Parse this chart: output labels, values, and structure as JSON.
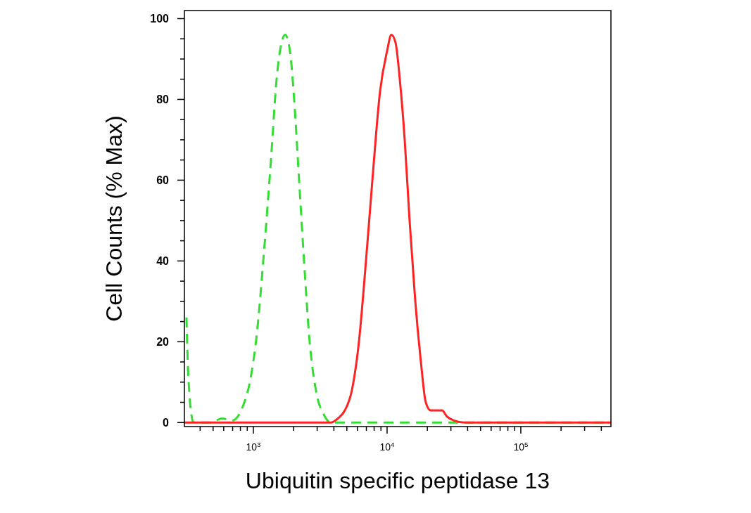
{
  "chart_data": {
    "type": "line",
    "xlabel": "Ubiquitin specific peptidase 13",
    "ylabel": "Cell Counts (% Max)",
    "log": "x",
    "grid": false,
    "xlim": [
      305,
      472000
    ],
    "ylim": [
      -1,
      102
    ],
    "xticks": [
      {
        "value": 400,
        "label": null
      },
      {
        "value": 500,
        "label": null
      },
      {
        "value": 600,
        "label": null
      },
      {
        "value": 700,
        "label": null
      },
      {
        "value": 800,
        "label": null
      },
      {
        "value": 900,
        "label": null
      },
      {
        "value": 1000,
        "label": "10$^{3}$"
      },
      {
        "value": 2000,
        "label": null
      },
      {
        "value": 3000,
        "label": null
      },
      {
        "value": 4000,
        "label": null
      },
      {
        "value": 5000,
        "label": null
      },
      {
        "value": 6000,
        "label": null
      },
      {
        "value": 7000,
        "label": null
      },
      {
        "value": 8000,
        "label": null
      },
      {
        "value": 9000,
        "label": null
      },
      {
        "value": 10000,
        "label": "10$^{4}$"
      },
      {
        "value": 20000,
        "label": null
      },
      {
        "value": 30000,
        "label": null
      },
      {
        "value": 40000,
        "label": null
      },
      {
        "value": 50000,
        "label": null
      },
      {
        "value": 60000,
        "label": null
      },
      {
        "value": 70000,
        "label": null
      },
      {
        "value": 80000,
        "label": null
      },
      {
        "value": 90000,
        "label": null
      },
      {
        "value": 100000,
        "label": "10$^{5}$"
      },
      {
        "value": 200000,
        "label": null
      },
      {
        "value": 300000,
        "label": null
      },
      {
        "value": 400000,
        "label": null
      }
    ],
    "yticks": [
      0,
      {
        "value": 5,
        "label": null
      },
      {
        "value": 10,
        "label": null
      },
      {
        "value": 15,
        "label": null
      },
      20,
      {
        "value": 25,
        "label": null
      },
      {
        "value": 30,
        "label": null
      },
      {
        "value": 35,
        "label": null
      },
      40,
      {
        "value": 45,
        "label": null
      },
      {
        "value": 50,
        "label": null
      },
      {
        "value": 55,
        "label": null
      },
      60,
      {
        "value": 65,
        "label": null
      },
      {
        "value": 70,
        "label": null
      },
      {
        "value": 75,
        "label": null
      },
      80,
      {
        "value": 85,
        "label": null
      },
      {
        "value": 90,
        "label": null
      },
      {
        "value": 95,
        "label": null
      },
      100
    ],
    "series": [
      {
        "color": "#33dd33",
        "line_style": "dashed",
        "x": [
          316,
          328,
          357,
          483,
          580,
          695,
          834,
          941,
          1062,
          1199,
          1354,
          1492,
          1624,
          1726,
          1878,
          2018,
          2198,
          2393,
          2636,
          2976,
          3360,
          3793,
          472000
        ],
        "values": [
          26,
          10,
          0,
          0,
          1,
          0.5,
          4,
          10,
          22,
          42,
          65,
          85,
          94,
          96,
          92,
          80,
          60,
          40,
          20,
          7,
          2,
          0,
          0
        ]
      },
      {
        "color": "#ff2222",
        "line_style": "solid",
        "x": [
          305,
          3793,
          4281,
          4833,
          5456,
          6158,
          6952,
          7848,
          8859,
          10000,
          10760,
          11570,
          12440,
          13540,
          14730,
          16250,
          17900,
          19460,
          21190,
          23350,
          25750,
          28010,
          31620,
          37930,
          472000
        ],
        "values": [
          0,
          0,
          1,
          3,
          8,
          20,
          40,
          62,
          82,
          92,
          96,
          94,
          85,
          70,
          50,
          30,
          15,
          5,
          3,
          3,
          3,
          1.5,
          0.5,
          0,
          0
        ]
      }
    ]
  }
}
